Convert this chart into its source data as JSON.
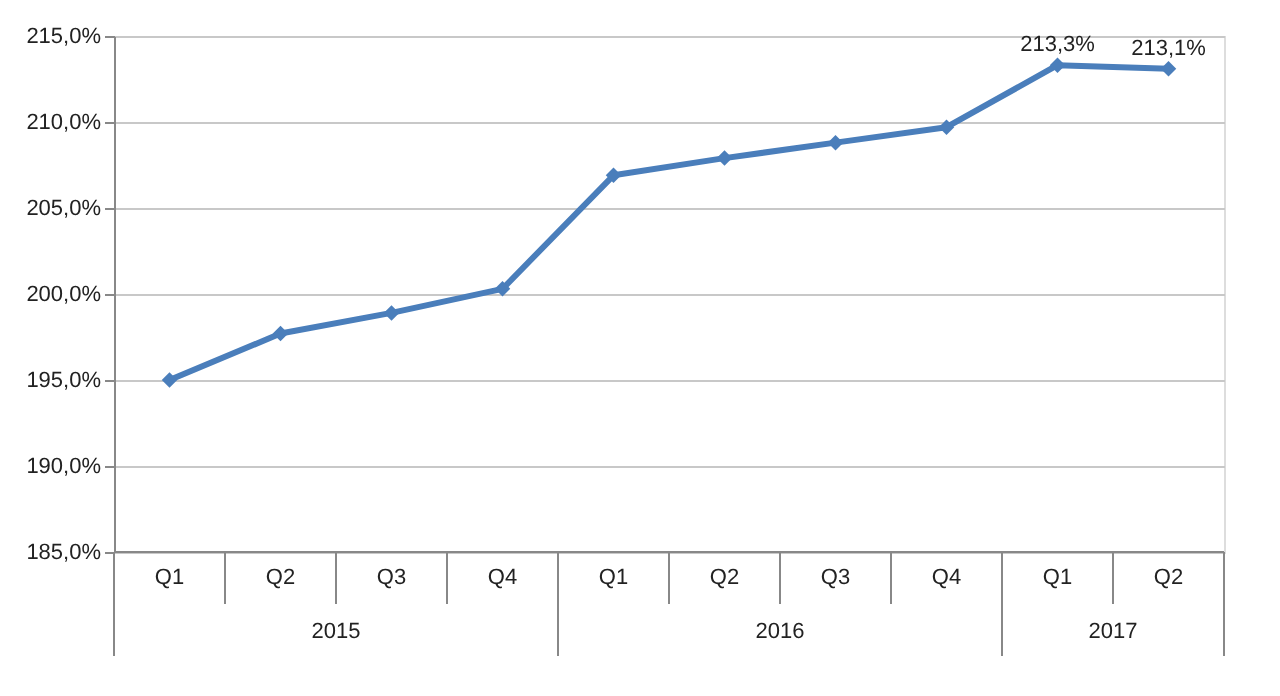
{
  "chart_data": {
    "type": "line",
    "categories": [
      "Q1",
      "Q2",
      "Q3",
      "Q4",
      "Q1",
      "Q2",
      "Q3",
      "Q4",
      "Q1",
      "Q2"
    ],
    "series": [
      {
        "color": "#4a7ebb",
        "values": [
          195.0,
          197.7,
          198.9,
          200.3,
          206.9,
          207.9,
          208.8,
          209.7,
          213.3,
          213.1
        ],
        "value_labels": [
          null,
          null,
          null,
          null,
          null,
          null,
          null,
          null,
          "213,3%",
          "213,1%"
        ]
      }
    ],
    "annotations": [
      "2015",
      "2016",
      "2017"
    ],
    "ylim": [
      185,
      215
    ],
    "yticks": [
      {
        "value": 185,
        "label": "185,0%"
      },
      {
        "value": 190,
        "label": "190,0%"
      },
      {
        "value": 195,
        "label": "195,0%"
      },
      {
        "value": 200,
        "label": "200,0%"
      },
      {
        "value": 205,
        "label": "205,0%"
      },
      {
        "value": 210,
        "label": "210,0%"
      },
      {
        "value": 215,
        "label": "215,0%"
      }
    ],
    "grid": "y",
    "marker": "diamond",
    "line_style": "solid"
  }
}
